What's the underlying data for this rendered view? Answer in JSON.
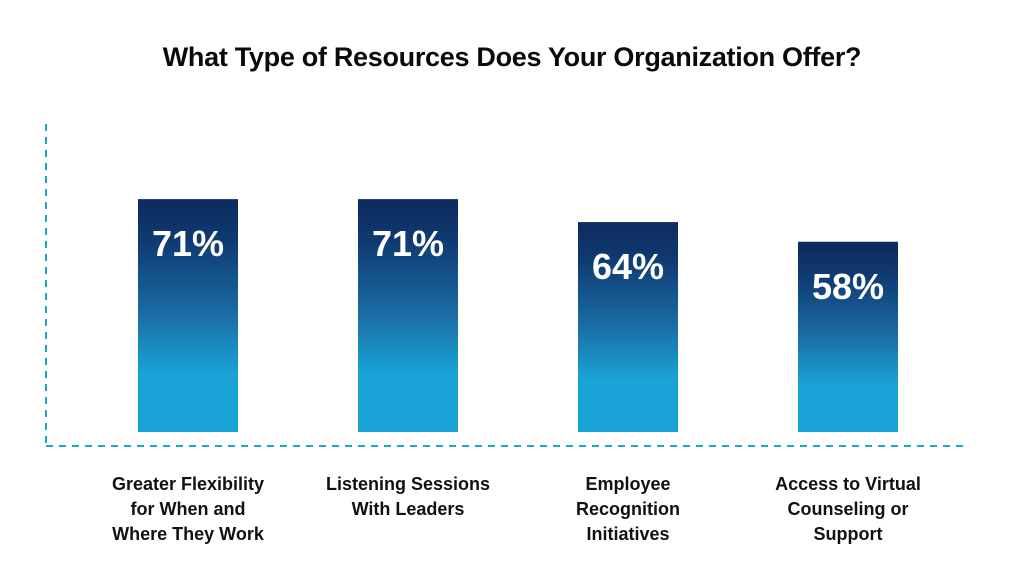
{
  "chart_data": {
    "type": "bar",
    "title": "What Type of Resources Does Your Organization Offer?",
    "xlabel": "",
    "ylabel": "",
    "categories": [
      [
        "Greater Flexibility",
        "for When and",
        "Where They Work"
      ],
      [
        "Listening Sessions",
        "With Leaders"
      ],
      [
        "Employee",
        "Recognition",
        "Initiatives"
      ],
      [
        "Access to Virtual",
        "Counseling or",
        "Support"
      ]
    ],
    "values": [
      71,
      71,
      64,
      58
    ],
    "value_labels": [
      "71%",
      "71%",
      "64%",
      "58%"
    ],
    "unit": "%",
    "ylim": [
      0,
      100
    ],
    "grid": false,
    "legend": "none",
    "colors": {
      "bar_top": "#0d2b5e",
      "bar_bottom": "#19a3d6",
      "axis": "#1aa7c9",
      "title": "#0b0b0b",
      "label": "#111111"
    }
  }
}
